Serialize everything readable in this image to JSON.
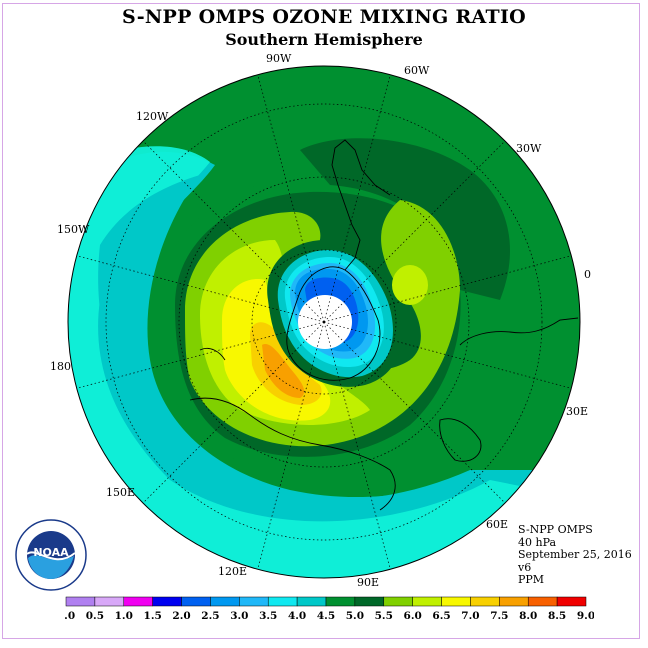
{
  "title": "S-NPP OMPS OZONE MIXING RATIO",
  "subtitle": "Southern Hemisphere",
  "longitude_labels": [
    "90W",
    "60W",
    "30W",
    "0",
    "30E",
    "60E",
    "90E",
    "120E",
    "150E",
    "180",
    "150W",
    "120W"
  ],
  "info": {
    "instrument": "S-NPP OMPS",
    "level": "40 hPa",
    "date": "September 25, 2016",
    "version": "v6",
    "units": "PPM"
  },
  "logo": {
    "text": "NOAA"
  },
  "colorbar": {
    "ticks": [
      "0.0",
      "0.5",
      "1.0",
      "1.5",
      "2.0",
      "2.5",
      "3.0",
      "3.5",
      "4.0",
      "4.5",
      "5.0",
      "5.5",
      "6.0",
      "6.5",
      "7.0",
      "7.5",
      "8.0",
      "8.5",
      "9.0"
    ],
    "colors": [
      "#b080f0",
      "#d8a8f8",
      "#f000f0",
      "#0000f0",
      "#0060f0",
      "#0098f0",
      "#20b8f8",
      "#10e8f0",
      "#00c8c8",
      "#009030",
      "#006828",
      "#80d000",
      "#c0f000",
      "#f8f800",
      "#f8d000",
      "#f8a000",
      "#f86000",
      "#f00000",
      "#905030"
    ]
  },
  "colors": {
    "ocean_base": "#009030",
    "frame": "#d6a6e6"
  }
}
